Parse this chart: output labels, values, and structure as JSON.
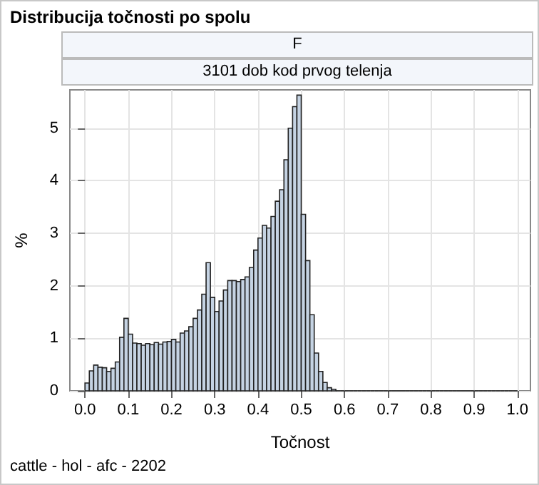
{
  "chart_data": {
    "type": "histogram",
    "title": "Distribucija točnosti po spolu",
    "subtitle": "F",
    "annotations": [
      "3101 dob kod prvog telenja",
      "cattle - hol - afc - 2202"
    ],
    "xlabel": "Točnost",
    "ylabel": "%",
    "color": "#c5d3e3",
    "bins": [
      0,
      0.01,
      0.02,
      0.03,
      0.04,
      0.05,
      0.06,
      0.07,
      0.08,
      0.09,
      0.1,
      0.11,
      0.12,
      0.13,
      0.14,
      0.15,
      0.16,
      0.17,
      0.18,
      0.19,
      0.2,
      0.21,
      0.22,
      0.23,
      0.24,
      0.25,
      0.26,
      0.27,
      0.28,
      0.29,
      0.3,
      0.31,
      0.32,
      0.33,
      0.34,
      0.35,
      0.36,
      0.37,
      0.38,
      0.39,
      0.4,
      0.41,
      0.42,
      0.43,
      0.44,
      0.45,
      0.46,
      0.47,
      0.48,
      0.49,
      0.5,
      0.51,
      0.52,
      0.53,
      0.54,
      0.55,
      0.56,
      0.57,
      0.58,
      0.59,
      0.6,
      0.61,
      0.62,
      0.63,
      0.64,
      0.65,
      0.66,
      0.67,
      0.68,
      0.69,
      0.7,
      0.71,
      0.72,
      0.73,
      0.74,
      0.75,
      0.76,
      0.77,
      0.78,
      0.79,
      0.8,
      0.81,
      0.82,
      0.83,
      0.84,
      0.85,
      0.86,
      0.87,
      0.88,
      0.89,
      0.9,
      0.91,
      0.92,
      0.93,
      0.94,
      0.95,
      0.96,
      0.97,
      0.98,
      0.99,
      1.0
    ],
    "values": [
      0.15,
      0.38,
      0.49,
      0.45,
      0.44,
      0.37,
      0.43,
      0.55,
      1.02,
      1.38,
      1.08,
      0.91,
      0.9,
      0.87,
      0.9,
      0.88,
      0.92,
      0.89,
      0.93,
      0.94,
      0.98,
      0.93,
      1.1,
      1.14,
      1.22,
      1.38,
      1.54,
      1.84,
      2.44,
      1.78,
      1.51,
      1.71,
      1.92,
      2.1,
      2.1,
      2.08,
      2.12,
      2.17,
      2.35,
      2.68,
      2.91,
      3.15,
      3.1,
      3.32,
      3.61,
      3.83,
      4.4,
      5.0,
      5.41,
      5.63,
      3.36,
      2.48,
      1.45,
      0.72,
      0.37,
      0.16,
      0.06,
      0.03,
      0,
      0,
      0,
      0,
      0,
      0,
      0,
      0,
      0,
      0,
      0,
      0,
      0,
      0,
      0,
      0,
      0,
      0,
      0,
      0,
      0,
      0,
      0,
      0,
      0,
      0,
      0,
      0,
      0,
      0,
      0,
      0,
      0,
      0,
      0,
      0,
      0,
      0,
      0,
      0,
      0,
      0
    ],
    "xlim": [
      -0.035,
      1.03
    ],
    "ylim": [
      0,
      5.73
    ],
    "xticks": [
      {
        "value": 0,
        "label": "0.0"
      },
      {
        "value": 0.1,
        "label": "0.1"
      },
      {
        "value": 0.2,
        "label": "0.2"
      },
      {
        "value": 0.3,
        "label": "0.3"
      },
      {
        "value": 0.4,
        "label": "0.4"
      },
      {
        "value": 0.5,
        "label": "0.5"
      },
      {
        "value": 0.6,
        "label": "0.6"
      },
      {
        "value": 0.7,
        "label": "0.7"
      },
      {
        "value": 0.8,
        "label": "0.8"
      },
      {
        "value": 0.9,
        "label": "0.9"
      },
      {
        "value": 1.0,
        "label": "1.0"
      }
    ],
    "yticks": [
      0,
      1,
      2,
      3,
      4,
      5
    ],
    "grid": true
  }
}
